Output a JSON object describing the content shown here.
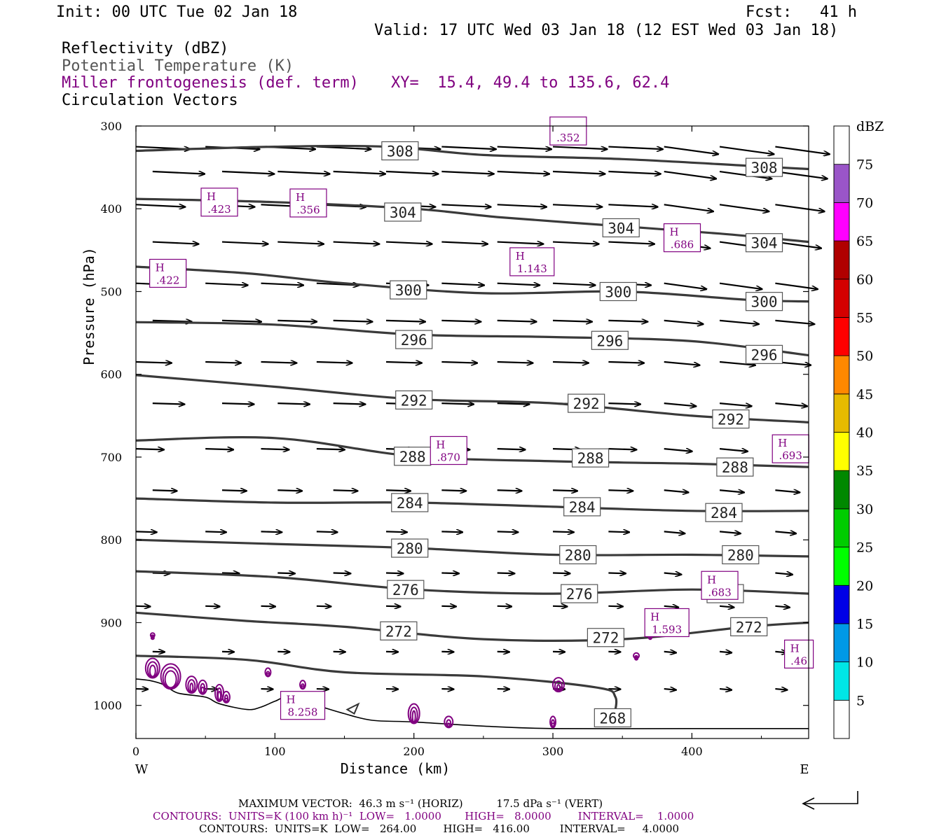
{
  "header": {
    "init": "Init: 00 UTC Tue 02 Jan 18",
    "fcst": "Fcst:   41 h",
    "valid": "Valid: 17 UTC Wed 03 Jan 18 (12 EST Wed 03 Jan 18)",
    "field1": "Reflectivity (dBZ)",
    "field2": "Potential Temperature (K)",
    "field3": "Miller frontogenesis (def. term)",
    "xy": "XY=  15.4, 49.4 to 135.6, 62.4",
    "field4": "Circulation Vectors"
  },
  "footer": {
    "line1": "MAXIMUM VECTOR:  46.3 m s⁻¹ (HORIZ)          17.5 dPa s⁻¹ (VERT)",
    "line2": "CONTOURS:  UNITS=K (100 km h)⁻¹  LOW=   1.0000       HIGH=   8.0000        INTERVAL=    1.0000",
    "line3": "CONTOURS:  UNITS=K  LOW=   264.00        HIGH=   416.00         INTERVAL=     4.0000"
  },
  "colors": {
    "theta": "#3a3a3a",
    "front": "#800080",
    "vector": "#000000"
  },
  "chart_data": {
    "type": "cross-section",
    "xlabel": "Distance (km)",
    "ylabel": "Pressure (hPa)",
    "xlim": [
      0,
      484
    ],
    "ylim": [
      300,
      1040
    ],
    "x_ticks": [
      0,
      100,
      200,
      300,
      400
    ],
    "y_ticks": [
      300,
      400,
      500,
      600,
      700,
      800,
      900,
      1000
    ],
    "x_end_labels": {
      "left": "W",
      "right": "E"
    },
    "grid": false,
    "theta_contours": [
      {
        "value": 308,
        "label": "308",
        "points": [
          [
            0,
            330
          ],
          [
            100,
            325
          ],
          [
            180,
            325
          ],
          [
            250,
            335
          ],
          [
            350,
            340
          ],
          [
            440,
            348
          ],
          [
            484,
            352
          ]
        ],
        "label_positions": [
          [
            190,
            330
          ],
          [
            452,
            350
          ]
        ]
      },
      {
        "value": 304,
        "label": "304",
        "points": [
          [
            0,
            388
          ],
          [
            100,
            392
          ],
          [
            200,
            400
          ],
          [
            260,
            410
          ],
          [
            340,
            420
          ],
          [
            420,
            430
          ],
          [
            484,
            440
          ]
        ],
        "label_positions": [
          [
            192,
            404
          ],
          [
            349,
            423
          ],
          [
            452,
            441
          ]
        ]
      },
      {
        "value": 300,
        "label": "300",
        "points": [
          [
            0,
            470
          ],
          [
            80,
            478
          ],
          [
            150,
            490
          ],
          [
            250,
            502
          ],
          [
            350,
            500
          ],
          [
            440,
            510
          ],
          [
            484,
            512
          ]
        ],
        "label_positions": [
          [
            196,
            498
          ],
          [
            347,
            500
          ],
          [
            452,
            512
          ]
        ]
      },
      {
        "value": 296,
        "label": "296",
        "points": [
          [
            0,
            537
          ],
          [
            100,
            540
          ],
          [
            200,
            552
          ],
          [
            300,
            555
          ],
          [
            400,
            560
          ],
          [
            484,
            577
          ]
        ],
        "label_positions": [
          [
            200,
            558
          ],
          [
            341,
            559
          ],
          [
            452,
            576
          ]
        ]
      },
      {
        "value": 292,
        "label": "292",
        "points": [
          [
            0,
            601
          ],
          [
            100,
            615
          ],
          [
            200,
            630
          ],
          [
            300,
            635
          ],
          [
            400,
            650
          ],
          [
            484,
            658
          ]
        ],
        "label_positions": [
          [
            200,
            631
          ],
          [
            324,
            635
          ],
          [
            428,
            654
          ]
        ]
      },
      {
        "value": 288,
        "label": "288",
        "points": [
          [
            0,
            680
          ],
          [
            100,
            677
          ],
          [
            200,
            699
          ],
          [
            300,
            705
          ],
          [
            400,
            708
          ],
          [
            484,
            712
          ]
        ],
        "label_positions": [
          [
            199,
            699
          ],
          [
            327,
            701
          ],
          [
            431,
            712
          ]
        ]
      },
      {
        "value": 284,
        "label": "284",
        "points": [
          [
            0,
            750
          ],
          [
            100,
            755
          ],
          [
            200,
            755
          ],
          [
            300,
            760
          ],
          [
            400,
            765
          ],
          [
            484,
            765
          ]
        ],
        "label_positions": [
          [
            197,
            755
          ],
          [
            321,
            760
          ],
          [
            423,
            767
          ]
        ]
      },
      {
        "value": 280,
        "label": "280",
        "points": [
          [
            0,
            800
          ],
          [
            100,
            805
          ],
          [
            200,
            810
          ],
          [
            300,
            818
          ],
          [
            400,
            818
          ],
          [
            484,
            820
          ]
        ],
        "label_positions": [
          [
            197,
            810
          ],
          [
            318,
            818
          ],
          [
            435,
            818
          ]
        ]
      },
      {
        "value": 276,
        "label": "276",
        "points": [
          [
            0,
            838
          ],
          [
            100,
            845
          ],
          [
            200,
            860
          ],
          [
            300,
            865
          ],
          [
            400,
            860
          ],
          [
            484,
            865
          ]
        ],
        "label_positions": [
          [
            194,
            860
          ],
          [
            319,
            865
          ],
          [
            424,
            865
          ]
        ]
      },
      {
        "value": 272,
        "label": "272",
        "points": [
          [
            0,
            888
          ],
          [
            80,
            898
          ],
          [
            150,
            905
          ],
          [
            250,
            920
          ],
          [
            350,
            920
          ],
          [
            440,
            905
          ],
          [
            484,
            900
          ]
        ],
        "label_positions": [
          [
            189,
            910
          ],
          [
            338,
            918
          ],
          [
            441,
            905
          ]
        ]
      },
      {
        "value": 268,
        "label": "268",
        "points": [
          [
            0,
            940
          ],
          [
            80,
            945
          ],
          [
            150,
            960
          ],
          [
            250,
            965
          ],
          [
            330,
            978
          ],
          [
            345,
            990
          ],
          [
            343,
            1018
          ]
        ],
        "label_positions": [
          [
            343,
            1015
          ]
        ]
      }
    ],
    "frontogenesis_maxima": [
      {
        "symbol": "H",
        "value": ".423",
        "at": [
          60,
          392
        ]
      },
      {
        "symbol": "H",
        "value": ".356",
        "at": [
          124,
          393
        ]
      },
      {
        "symbol": "H",
        "value": ".422",
        "at": [
          23,
          478
        ]
      },
      {
        "symbol": "H",
        "value": "1.143",
        "at": [
          285,
          464
        ]
      },
      {
        "symbol": "H",
        "value": ".686",
        "at": [
          393,
          435
        ]
      },
      {
        "symbol": "H",
        "value": ".870",
        "at": [
          225,
          692
        ]
      },
      {
        "symbol": "H",
        "value": ".693",
        "at": [
          471,
          690
        ]
      },
      {
        "symbol": "H",
        "value": ".683",
        "at": [
          420,
          855
        ]
      },
      {
        "symbol": "H",
        "value": "1.593",
        "at": [
          382,
          900
        ]
      },
      {
        "symbol": "H",
        "value": ".46",
        "at": [
          477,
          938
        ]
      },
      {
        "symbol": "H",
        "value": "8.258",
        "at": [
          120,
          1000
        ]
      },
      {
        "symbol": "",
        "value": ".352",
        "at": [
          311,
          306
        ]
      }
    ],
    "colorbar": {
      "title": "dBZ",
      "levels": [
        5,
        10,
        15,
        20,
        25,
        30,
        35,
        40,
        45,
        50,
        55,
        60,
        65,
        70,
        75
      ],
      "colors": [
        "#ffffff",
        "#00e6e6",
        "#0099e6",
        "#0000e6",
        "#00ff00",
        "#00cc00",
        "#008800",
        "#ffff00",
        "#e6bb00",
        "#ff8800",
        "#ff0000",
        "#d40000",
        "#b00000",
        "#ff00ff",
        "#9a55c8",
        "#ffffff"
      ]
    },
    "max_vector": {
      "horiz": 46.3,
      "horiz_units": "m s-1",
      "vert": 17.5,
      "vert_units": "dPa s-1"
    }
  }
}
